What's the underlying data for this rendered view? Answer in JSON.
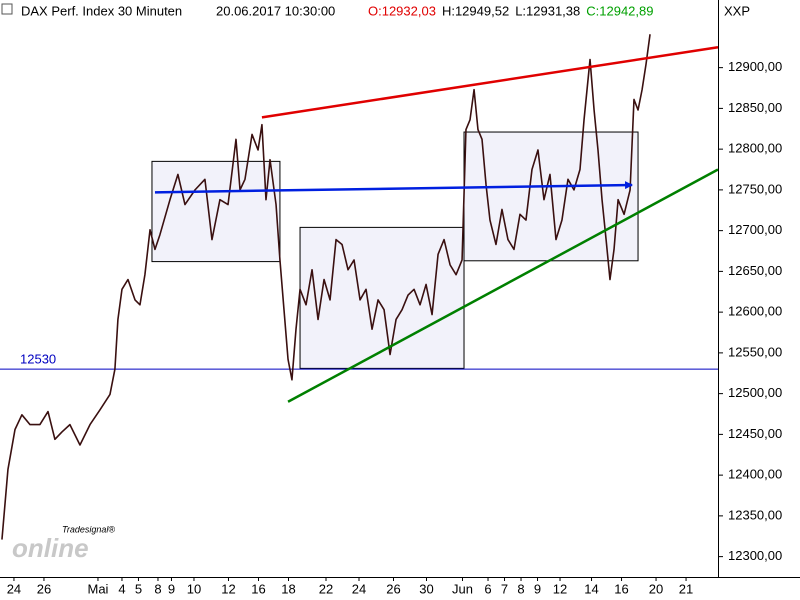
{
  "chart_data": {
    "type": "line",
    "title": "DAX Perf. Index 30 Minuten",
    "timestamp": "20.06.2017 10:30:00",
    "ohlc": [
      {
        "text": "O:12932,03",
        "color": "#e00000"
      },
      {
        "text": "H:12949,52",
        "color": "#000000"
      },
      {
        "text": "L:12931,38",
        "color": "#000000"
      },
      {
        "text": "C:12942,89",
        "color": "#00a000"
      }
    ],
    "axis_label": "XXP",
    "watermark": "online",
    "watermark_small": "Tradesignal®",
    "xlim": [
      -0.93,
      46.93
    ],
    "ylim": [
      12275,
      12983
    ],
    "yticks": [
      {
        "value": 12300,
        "label": "12300,00"
      },
      {
        "value": 12350,
        "label": "12350,00"
      },
      {
        "value": 12400,
        "label": "12400,00"
      },
      {
        "value": 12450,
        "label": "12450,00"
      },
      {
        "value": 12500,
        "label": "12500,00"
      },
      {
        "value": 12550,
        "label": "12550,00"
      },
      {
        "value": 12600,
        "label": "12600,00"
      },
      {
        "value": 12650,
        "label": "12650,00"
      },
      {
        "value": 12700,
        "label": "12700,00"
      },
      {
        "value": 12750,
        "label": "12750,00"
      },
      {
        "value": 12800,
        "label": "12800,00"
      },
      {
        "value": 12850,
        "label": "12850,00"
      },
      {
        "value": 12900,
        "label": "12900,00"
      }
    ],
    "xticks": [
      {
        "value": 0,
        "label": "24"
      },
      {
        "value": 2,
        "label": "26"
      },
      {
        "value": 5.6,
        "label": "Mai"
      },
      {
        "value": 7.2,
        "label": "4"
      },
      {
        "value": 8.3,
        "label": "5"
      },
      {
        "value": 9.6,
        "label": "8"
      },
      {
        "value": 10.5,
        "label": "9"
      },
      {
        "value": 12,
        "label": "10"
      },
      {
        "value": 14.3,
        "label": "12"
      },
      {
        "value": 16.3,
        "label": "16"
      },
      {
        "value": 18.3,
        "label": "18"
      },
      {
        "value": 20.8,
        "label": "22"
      },
      {
        "value": 23,
        "label": "24"
      },
      {
        "value": 25.3,
        "label": "26"
      },
      {
        "value": 27.5,
        "label": "30"
      },
      {
        "value": 29.9,
        "label": "Jun"
      },
      {
        "value": 31.6,
        "label": "6"
      },
      {
        "value": 32.7,
        "label": "7"
      },
      {
        "value": 33.8,
        "label": "8"
      },
      {
        "value": 34.9,
        "label": "9"
      },
      {
        "value": 36.4,
        "label": "12"
      },
      {
        "value": 38.5,
        "label": "14"
      },
      {
        "value": 40.5,
        "label": "16"
      },
      {
        "value": 42.8,
        "label": "20"
      },
      {
        "value": 44.8,
        "label": "21"
      }
    ],
    "x": [
      -0.8,
      -0.4,
      0.07,
      0.53,
      1.07,
      1.73,
      2.27,
      2.73,
      3.2,
      3.73,
      4.4,
      5.07,
      5.73,
      6.4,
      6.73,
      6.93,
      7.2,
      7.6,
      8.07,
      8.4,
      8.73,
      9.07,
      9.4,
      9.73,
      10.4,
      10.93,
      11.4,
      12.07,
      12.73,
      13.2,
      13.73,
      14.27,
      14.8,
      15.07,
      15.4,
      15.87,
      16.27,
      16.53,
      16.8,
      17.07,
      17.47,
      17.73,
      18,
      18.27,
      18.53,
      18.8,
      19.07,
      19.47,
      19.87,
      20.27,
      20.67,
      21.07,
      21.47,
      21.87,
      22.27,
      22.67,
      23.07,
      23.47,
      23.87,
      24.27,
      24.67,
      25.07,
      25.47,
      25.87,
      26.27,
      26.67,
      27.07,
      27.47,
      27.87,
      28.27,
      28.67,
      29.07,
      29.47,
      29.87,
      30.13,
      30.4,
      30.67,
      30.93,
      31.2,
      31.47,
      31.73,
      32.13,
      32.53,
      32.93,
      33.33,
      33.73,
      34.13,
      34.53,
      34.93,
      35.33,
      35.73,
      36.13,
      36.53,
      36.93,
      37.33,
      37.73,
      38,
      38.4,
      38.67,
      38.93,
      39.2,
      39.47,
      39.73,
      40,
      40.27,
      40.67,
      41.07,
      41.33,
      41.6,
      41.87,
      42.13,
      42.4
    ],
    "series": [
      {
        "color": "#3a1010",
        "values": [
          12321,
          12407,
          12456,
          12474,
          12462,
          12462,
          12478,
          12444,
          12453,
          12462,
          12437,
          12462,
          12480,
          12499,
          12530,
          12591,
          12628,
          12640,
          12615,
          12609,
          12646,
          12701,
          12677,
          12695,
          12738,
          12769,
          12732,
          12750,
          12763,
          12689,
          12738,
          12732,
          12812,
          12750,
          12763,
          12818,
          12799,
          12830,
          12738,
          12787,
          12732,
          12664,
          12603,
          12542,
          12517,
          12579,
          12628,
          12609,
          12652,
          12591,
          12640,
          12615,
          12689,
          12683,
          12652,
          12664,
          12615,
          12628,
          12579,
          12615,
          12603,
          12548,
          12591,
          12603,
          12621,
          12628,
          12609,
          12634,
          12597,
          12671,
          12689,
          12658,
          12646,
          12664,
          12824,
          12836,
          12873,
          12824,
          12812,
          12756,
          12713,
          12683,
          12726,
          12689,
          12677,
          12720,
          12713,
          12775,
          12799,
          12738,
          12769,
          12689,
          12713,
          12763,
          12750,
          12775,
          12836,
          12910,
          12848,
          12799,
          12738,
          12689,
          12640,
          12677,
          12738,
          12720,
          12750,
          12861,
          12848,
          12873,
          12904,
          12941
        ]
      }
    ],
    "trend_lines": [
      {
        "color": "#e00000",
        "x": [
          16.53,
          46.93
        ],
        "y": [
          12839,
          12925
        ]
      },
      {
        "color": "#008000",
        "x": [
          18.27,
          46.93
        ],
        "y": [
          12490,
          12775
        ]
      },
      {
        "color": "#0020e0",
        "x": [
          9.4,
          41.2
        ],
        "y": [
          12747,
          12756
        ],
        "arrow": true
      }
    ],
    "boxes": [
      {
        "x": [
          9.2,
          17.73
        ],
        "y": [
          12662,
          12785
        ]
      },
      {
        "x": [
          19.07,
          30
        ],
        "y": [
          12531,
          12704
        ]
      },
      {
        "x": [
          30,
          41.6
        ],
        "y": [
          12663,
          12821
        ]
      }
    ],
    "hline": {
      "value": 12530,
      "color": "#0000c0"
    }
  }
}
